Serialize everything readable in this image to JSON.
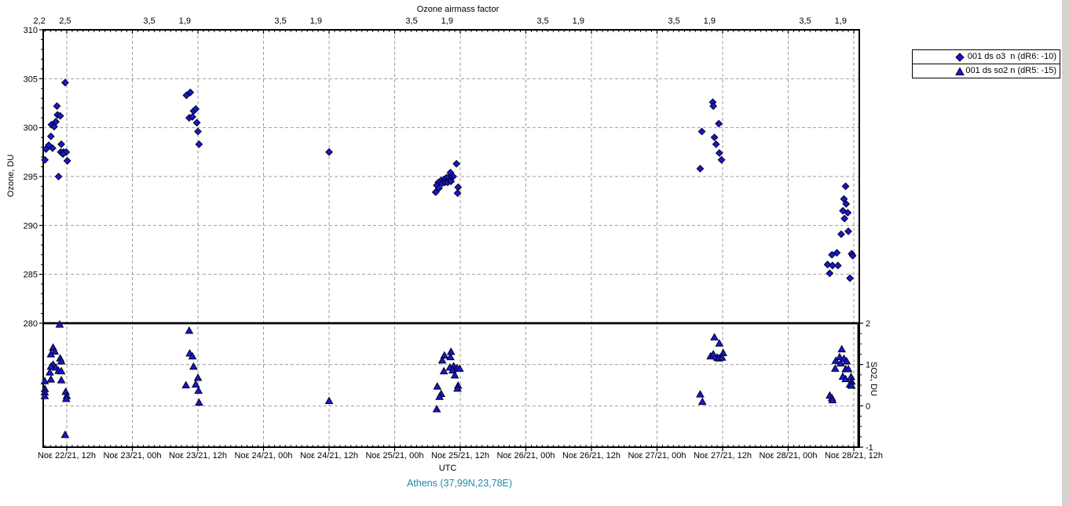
{
  "colors": {
    "marker_fill": "#1818cf",
    "marker_stroke": "#000020",
    "grid": "#9e9e9e",
    "axis": "#000000",
    "location_text": "#1d8bad",
    "window_edge": "#d6d3ce"
  },
  "legend": {
    "items": [
      {
        "marker": "diamond",
        "label": "001 ds o3  n (dR6: -10)"
      },
      {
        "marker": "triangle",
        "label": "001 ds so2 n (dR5: -15)"
      }
    ]
  },
  "chart_data": {
    "type": "scatter",
    "title_top_axis": "Ozone airmass factor",
    "xlabel": "UTC",
    "ylabel_left": "Ozone, DU",
    "ylabel_right": "SO2, DU",
    "footer_location": "Athens (37,99N,23,78E)",
    "x_axis": {
      "units": "hours since Νοε 22/21 00:00 UTC",
      "range_hours": [
        7.7,
        157
      ],
      "tick_labels": [
        {
          "t": 12,
          "label": "Νοε 22/21, 12h"
        },
        {
          "t": 24,
          "label": "Νοε 23/21, 00h"
        },
        {
          "t": 36,
          "label": "Νοε 23/21, 12h"
        },
        {
          "t": 48,
          "label": "Νοε 24/21, 00h"
        },
        {
          "t": 60,
          "label": "Νοε 24/21, 12h"
        },
        {
          "t": 72,
          "label": "Νοε 25/21, 00h"
        },
        {
          "t": 84,
          "label": "Νοε 25/21, 12h"
        },
        {
          "t": 96,
          "label": "Νοε 26/21, 00h"
        },
        {
          "t": 108,
          "label": "Νοε 26/21, 12h"
        },
        {
          "t": 120,
          "label": "Νοε 27/21, 00h"
        },
        {
          "t": 132,
          "label": "Νοε 27/21, 12h"
        },
        {
          "t": 144,
          "label": "Νοε 28/21, 00h"
        },
        {
          "t": 156,
          "label": "Νοε 28/21, 12h"
        }
      ]
    },
    "top_axis_airmass_labels": [
      {
        "t": 7.0,
        "label": "2,2"
      },
      {
        "t": 11.7,
        "label": "2,5"
      },
      {
        "t": 27.1,
        "label": "3,5"
      },
      {
        "t": 33.6,
        "label": "1,9"
      },
      {
        "t": 51.1,
        "label": "3,5"
      },
      {
        "t": 57.6,
        "label": "1,9"
      },
      {
        "t": 75.1,
        "label": "3,5"
      },
      {
        "t": 81.6,
        "label": "1,9"
      },
      {
        "t": 99.1,
        "label": "3,5"
      },
      {
        "t": 105.6,
        "label": "1,9"
      },
      {
        "t": 123.1,
        "label": "3,5"
      },
      {
        "t": 129.6,
        "label": "1,9"
      },
      {
        "t": 147.1,
        "label": "3,5"
      },
      {
        "t": 153.6,
        "label": "1,9"
      }
    ],
    "y_left": {
      "min": 280,
      "max": 310,
      "major_ticks": [
        310,
        305,
        300,
        295,
        290,
        285,
        280
      ],
      "gridlines": [
        305,
        300,
        295,
        290,
        285
      ]
    },
    "y_right": {
      "min": -1,
      "max": 2,
      "major_ticks": [
        2,
        1,
        0,
        -1
      ],
      "gridlines": [
        1,
        0
      ]
    },
    "separator_line": {
      "ozone_value": 280,
      "so2_value": 2
    },
    "series": [
      {
        "name": "001 ds o3  n (dR6: -10)",
        "marker": "diamond",
        "axis": "ozone",
        "points": [
          [
            11.7,
            304.6
          ],
          [
            10.2,
            302.2
          ],
          [
            10.3,
            301.3
          ],
          [
            10.8,
            301.2
          ],
          [
            10.0,
            300.6
          ],
          [
            9.2,
            300.3
          ],
          [
            9.7,
            300.1
          ],
          [
            9.1,
            299.1
          ],
          [
            8.7,
            298.2
          ],
          [
            9.4,
            297.9
          ],
          [
            8.2,
            297.8
          ],
          [
            11.0,
            298.3
          ],
          [
            10.9,
            297.5
          ],
          [
            11.4,
            297.5
          ],
          [
            11.9,
            297.5
          ],
          [
            11.3,
            297.3
          ],
          [
            8.0,
            296.7
          ],
          [
            12.1,
            296.6
          ],
          [
            10.5,
            295.0
          ],
          [
            33.9,
            303.3
          ],
          [
            34.6,
            303.6
          ],
          [
            35.2,
            301.7
          ],
          [
            35.6,
            301.9
          ],
          [
            34.4,
            301.0
          ],
          [
            35.0,
            301.1
          ],
          [
            35.8,
            300.5
          ],
          [
            36.0,
            299.6
          ],
          [
            36.2,
            298.3
          ],
          [
            60.0,
            297.5
          ],
          [
            83.3,
            296.3
          ],
          [
            82.2,
            295.4
          ],
          [
            82.7,
            295.0
          ],
          [
            81.9,
            294.9
          ],
          [
            81.5,
            294.9
          ],
          [
            81.0,
            294.7
          ],
          [
            80.5,
            294.6
          ],
          [
            80.0,
            294.4
          ],
          [
            80.7,
            294.3
          ],
          [
            81.2,
            294.4
          ],
          [
            81.7,
            294.4
          ],
          [
            82.3,
            294.5
          ],
          [
            79.7,
            294.1
          ],
          [
            80.1,
            293.8
          ],
          [
            79.5,
            293.4
          ],
          [
            83.6,
            293.9
          ],
          [
            83.5,
            293.3
          ],
          [
            130.2,
            302.6
          ],
          [
            130.3,
            302.2
          ],
          [
            131.3,
            300.4
          ],
          [
            128.2,
            299.6
          ],
          [
            130.5,
            299.0
          ],
          [
            130.8,
            298.3
          ],
          [
            131.4,
            297.4
          ],
          [
            131.8,
            296.7
          ],
          [
            127.9,
            295.8
          ],
          [
            154.5,
            294.0
          ],
          [
            154.2,
            292.7
          ],
          [
            154.6,
            292.2
          ],
          [
            154.0,
            291.5
          ],
          [
            154.9,
            291.3
          ],
          [
            154.3,
            290.7
          ],
          [
            155.0,
            289.4
          ],
          [
            153.7,
            289.1
          ],
          [
            155.6,
            287.1
          ],
          [
            155.8,
            286.9
          ],
          [
            152.0,
            287.0
          ],
          [
            152.9,
            287.2
          ],
          [
            151.2,
            286.0
          ],
          [
            152.1,
            285.9
          ],
          [
            153.1,
            285.9
          ],
          [
            151.6,
            285.1
          ],
          [
            155.3,
            284.6
          ]
        ]
      },
      {
        "name": "001 ds so2 n (dR5: -15)",
        "marker": "triangle",
        "axis": "so2",
        "points": [
          [
            10.7,
            1.97
          ],
          [
            9.5,
            1.41
          ],
          [
            9.8,
            1.32
          ],
          [
            9.1,
            1.25
          ],
          [
            10.8,
            1.15
          ],
          [
            11.0,
            1.08
          ],
          [
            9.5,
            1.0
          ],
          [
            9.1,
            0.95
          ],
          [
            10.0,
            0.93
          ],
          [
            10.5,
            0.85
          ],
          [
            11.0,
            0.84
          ],
          [
            8.9,
            0.81
          ],
          [
            9.1,
            0.64
          ],
          [
            7.7,
            0.6
          ],
          [
            11.0,
            0.62
          ],
          [
            8.0,
            0.41
          ],
          [
            7.6,
            0.33
          ],
          [
            11.8,
            0.34
          ],
          [
            12.0,
            0.24
          ],
          [
            11.9,
            0.17
          ],
          [
            7.8,
            0.24
          ],
          [
            11.7,
            -0.7
          ],
          [
            34.4,
            1.82
          ],
          [
            34.5,
            1.27
          ],
          [
            35.0,
            1.2
          ],
          [
            35.2,
            0.95
          ],
          [
            36.0,
            0.68
          ],
          [
            35.6,
            0.52
          ],
          [
            33.8,
            0.5
          ],
          [
            36.1,
            0.37
          ],
          [
            36.2,
            0.08
          ],
          [
            60.0,
            0.12
          ],
          [
            82.3,
            1.31
          ],
          [
            81.1,
            1.22
          ],
          [
            82.2,
            1.18
          ],
          [
            80.7,
            1.1
          ],
          [
            82.8,
            0.96
          ],
          [
            82.1,
            0.93
          ],
          [
            83.4,
            0.91
          ],
          [
            83.9,
            0.9
          ],
          [
            82.6,
            0.86
          ],
          [
            81.0,
            0.84
          ],
          [
            83.0,
            0.74
          ],
          [
            83.6,
            0.49
          ],
          [
            83.5,
            0.42
          ],
          [
            79.8,
            0.47
          ],
          [
            80.5,
            0.29
          ],
          [
            80.2,
            0.22
          ],
          [
            79.7,
            -0.08
          ],
          [
            130.5,
            1.66
          ],
          [
            131.4,
            1.51
          ],
          [
            129.8,
            1.2
          ],
          [
            130.3,
            1.25
          ],
          [
            131.0,
            1.17
          ],
          [
            131.3,
            1.15
          ],
          [
            132.1,
            1.28
          ],
          [
            131.9,
            1.17
          ],
          [
            127.9,
            0.28
          ],
          [
            128.3,
            0.1
          ],
          [
            153.8,
            1.37
          ],
          [
            153.4,
            1.18
          ],
          [
            154.2,
            1.14
          ],
          [
            152.7,
            1.09
          ],
          [
            153.6,
            1.03
          ],
          [
            154.7,
            1.08
          ],
          [
            152.6,
            0.9
          ],
          [
            154.5,
            0.89
          ],
          [
            155.0,
            0.89
          ],
          [
            154.0,
            0.71
          ],
          [
            154.5,
            0.65
          ],
          [
            155.5,
            0.7
          ],
          [
            155.6,
            0.59
          ],
          [
            155.3,
            0.52
          ],
          [
            155.6,
            0.49
          ],
          [
            151.6,
            0.25
          ],
          [
            152.0,
            0.19
          ],
          [
            152.1,
            0.14
          ]
        ]
      }
    ]
  }
}
